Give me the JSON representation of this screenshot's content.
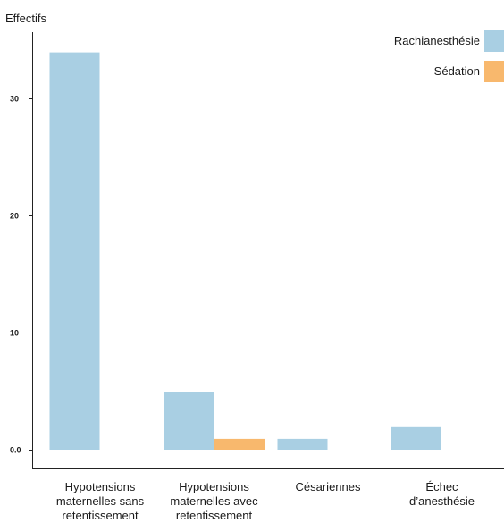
{
  "chart_data": {
    "type": "bar",
    "ylabel": "Effectifs",
    "xlabel": "",
    "ylim": [
      0,
      36
    ],
    "yticks": [
      0,
      10,
      20,
      30
    ],
    "ytick_labels": [
      "0.0",
      "10",
      "20",
      "30"
    ],
    "grid": false,
    "legend_position": "top-right",
    "categories": [
      [
        "Hypotensions",
        "maternelles sans",
        "retentissement"
      ],
      [
        "Hypotensions",
        "maternelles avec",
        "retentissement"
      ],
      [
        "Césariennes"
      ],
      [
        "Échec",
        "d’anesthésie"
      ]
    ],
    "series": [
      {
        "name": "Rachianesthésie",
        "color": "#a9cfe3",
        "values": [
          34,
          5,
          1,
          2
        ]
      },
      {
        "name": "Sédation",
        "color": "#f8b86d",
        "values": [
          0,
          1,
          0,
          0
        ]
      }
    ]
  }
}
